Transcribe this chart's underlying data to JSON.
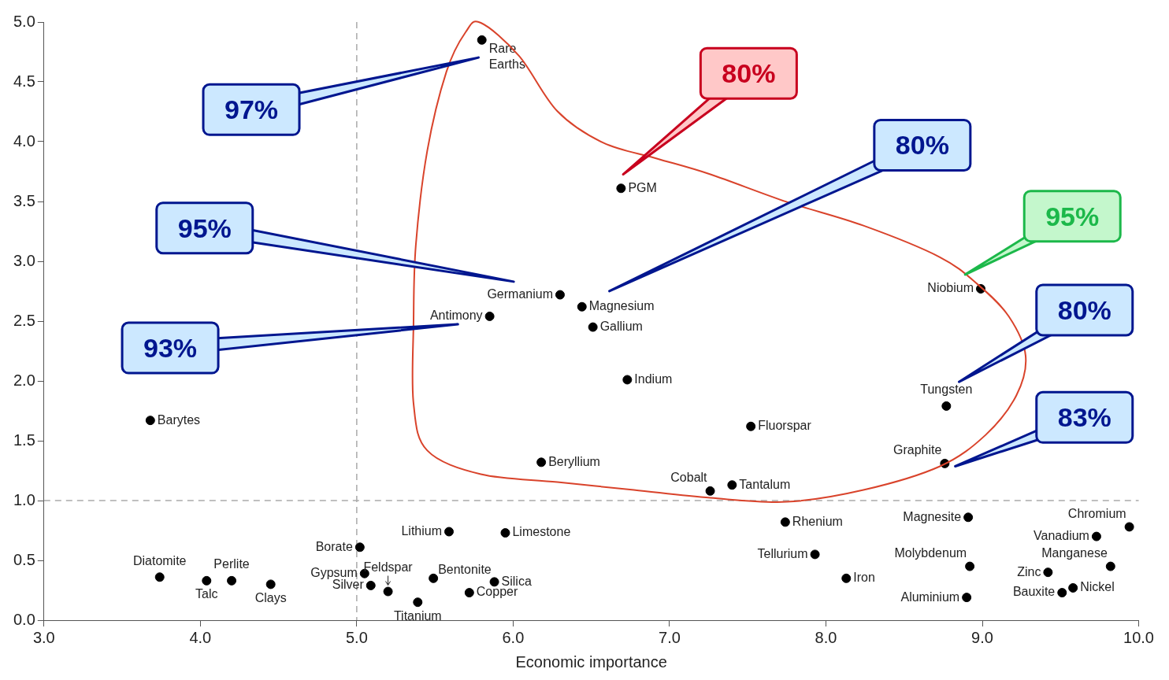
{
  "chart_data": {
    "type": "scatter",
    "xlabel": "Economic importance",
    "xlim": [
      3,
      10
    ],
    "xticks": [
      {
        "value": 3,
        "label": "3.0"
      },
      {
        "value": 4,
        "label": "4.0"
      },
      {
        "value": 5,
        "label": "5.0"
      },
      {
        "value": 6,
        "label": "6.0"
      },
      {
        "value": 7,
        "label": "7.0"
      },
      {
        "value": 8,
        "label": "8.0"
      },
      {
        "value": 9,
        "label": "9.0"
      },
      {
        "value": 10,
        "label": "10.0"
      }
    ],
    "ylim": [
      0,
      5
    ],
    "yticks": [
      {
        "value": 0,
        "label": "0.0"
      },
      {
        "value": 0.5,
        "label": "0.5"
      },
      {
        "value": 1,
        "label": "1.0"
      },
      {
        "value": 1.5,
        "label": "1.5"
      },
      {
        "value": 2,
        "label": "2.0"
      },
      {
        "value": 2.5,
        "label": "2.5"
      },
      {
        "value": 3,
        "label": "3.0"
      },
      {
        "value": 3.5,
        "label": "3.5"
      },
      {
        "value": 4,
        "label": "4.0"
      },
      {
        "value": 4.5,
        "label": "4.5"
      },
      {
        "value": 5,
        "label": "5.0"
      }
    ],
    "grid": false,
    "legend": false,
    "marker": "circle",
    "ref_lines": [
      {
        "axis": "x",
        "value": 5,
        "color": "#aaaaaa",
        "line_style": "dashed"
      },
      {
        "axis": "y",
        "value": 1,
        "color": "#aaaaaa",
        "line_style": "dashed"
      }
    ],
    "annotations": [
      "97%",
      "80%",
      "80%",
      "95%",
      "93%",
      "95%",
      "80%",
      "83%"
    ],
    "series": [
      {
        "name": "Rare Earths",
        "color": "#000000",
        "x": [
          5.8
        ],
        "values": [
          4.85
        ]
      },
      {
        "name": "PGM",
        "color": "#000000",
        "x": [
          6.69
        ],
        "values": [
          3.61
        ]
      },
      {
        "name": "Germanium",
        "color": "#000000",
        "x": [
          6.3
        ],
        "values": [
          2.72
        ]
      },
      {
        "name": "Magnesium",
        "color": "#000000",
        "x": [
          6.44
        ],
        "values": [
          2.62
        ]
      },
      {
        "name": "Gallium",
        "color": "#000000",
        "x": [
          6.51
        ],
        "values": [
          2.45
        ]
      },
      {
        "name": "Antimony",
        "color": "#000000",
        "x": [
          5.85
        ],
        "values": [
          2.54
        ]
      },
      {
        "name": "Indium",
        "color": "#000000",
        "x": [
          6.73
        ],
        "values": [
          2.01
        ]
      },
      {
        "name": "Barytes",
        "color": "#000000",
        "x": [
          3.68
        ],
        "values": [
          1.67
        ]
      },
      {
        "name": "Fluorspar",
        "color": "#000000",
        "x": [
          7.52
        ],
        "values": [
          1.62
        ]
      },
      {
        "name": "Niobium",
        "color": "#000000",
        "x": [
          8.99
        ],
        "values": [
          2.77
        ]
      },
      {
        "name": "Tungsten",
        "color": "#000000",
        "x": [
          8.77
        ],
        "values": [
          1.79
        ]
      },
      {
        "name": "Graphite",
        "color": "#000000",
        "x": [
          8.76
        ],
        "values": [
          1.31
        ]
      },
      {
        "name": "Beryllium",
        "color": "#000000",
        "x": [
          6.18
        ],
        "values": [
          1.32
        ]
      },
      {
        "name": "Cobalt",
        "color": "#000000",
        "x": [
          7.26
        ],
        "values": [
          1.08
        ]
      },
      {
        "name": "Tantalum",
        "color": "#000000",
        "x": [
          7.4
        ],
        "values": [
          1.13
        ]
      },
      {
        "name": "Rhenium",
        "color": "#000000",
        "x": [
          7.74
        ],
        "values": [
          0.82
        ]
      },
      {
        "name": "Tellurium",
        "color": "#000000",
        "x": [
          7.93
        ],
        "values": [
          0.55
        ]
      },
      {
        "name": "Iron",
        "color": "#000000",
        "x": [
          8.13
        ],
        "values": [
          0.35
        ]
      },
      {
        "name": "Magnesite",
        "color": "#000000",
        "x": [
          8.91
        ],
        "values": [
          0.86
        ]
      },
      {
        "name": "Molybdenum",
        "color": "#000000",
        "x": [
          8.92
        ],
        "values": [
          0.45
        ]
      },
      {
        "name": "Aluminium",
        "color": "#000000",
        "x": [
          8.9
        ],
        "values": [
          0.19
        ]
      },
      {
        "name": "Chromium",
        "color": "#000000",
        "x": [
          9.94
        ],
        "values": [
          0.78
        ]
      },
      {
        "name": "Vanadium",
        "color": "#000000",
        "x": [
          9.73
        ],
        "values": [
          0.7
        ]
      },
      {
        "name": "Manganese",
        "color": "#000000",
        "x": [
          9.82
        ],
        "values": [
          0.45
        ]
      },
      {
        "name": "Zinc",
        "color": "#000000",
        "x": [
          9.42
        ],
        "values": [
          0.4
        ]
      },
      {
        "name": "Nickel",
        "color": "#000000",
        "x": [
          9.58
        ],
        "values": [
          0.27
        ]
      },
      {
        "name": "Bauxite",
        "color": "#000000",
        "x": [
          9.51
        ],
        "values": [
          0.23
        ]
      },
      {
        "name": "Lithium",
        "color": "#000000",
        "x": [
          5.59
        ],
        "values": [
          0.74
        ]
      },
      {
        "name": "Limestone",
        "color": "#000000",
        "x": [
          5.95
        ],
        "values": [
          0.73
        ]
      },
      {
        "name": "Borate",
        "color": "#000000",
        "x": [
          5.02
        ],
        "values": [
          0.61
        ]
      },
      {
        "name": "Gypsum",
        "color": "#000000",
        "x": [
          5.05
        ],
        "values": [
          0.39
        ]
      },
      {
        "name": "Silver",
        "color": "#000000",
        "x": [
          5.09
        ],
        "values": [
          0.29
        ]
      },
      {
        "name": "Feldspar",
        "color": "#000000",
        "x": [
          5.2
        ],
        "values": [
          0.24
        ]
      },
      {
        "name": "Bentonite",
        "color": "#000000",
        "x": [
          5.49
        ],
        "values": [
          0.35
        ]
      },
      {
        "name": "Silica",
        "color": "#000000",
        "x": [
          5.88
        ],
        "values": [
          0.32
        ]
      },
      {
        "name": "Copper",
        "color": "#000000",
        "x": [
          5.72
        ],
        "values": [
          0.23
        ]
      },
      {
        "name": "Titanium",
        "color": "#000000",
        "x": [
          5.39
        ],
        "values": [
          0.15
        ]
      },
      {
        "name": "Diatomite",
        "color": "#000000",
        "x": [
          3.74
        ],
        "values": [
          0.36
        ]
      },
      {
        "name": "Talc",
        "color": "#000000",
        "x": [
          4.04
        ],
        "values": [
          0.33
        ]
      },
      {
        "name": "Perlite",
        "color": "#000000",
        "x": [
          4.2
        ],
        "values": [
          0.33
        ]
      },
      {
        "name": "Clays",
        "color": "#000000",
        "x": [
          4.45
        ],
        "values": [
          0.3
        ]
      }
    ]
  }
}
